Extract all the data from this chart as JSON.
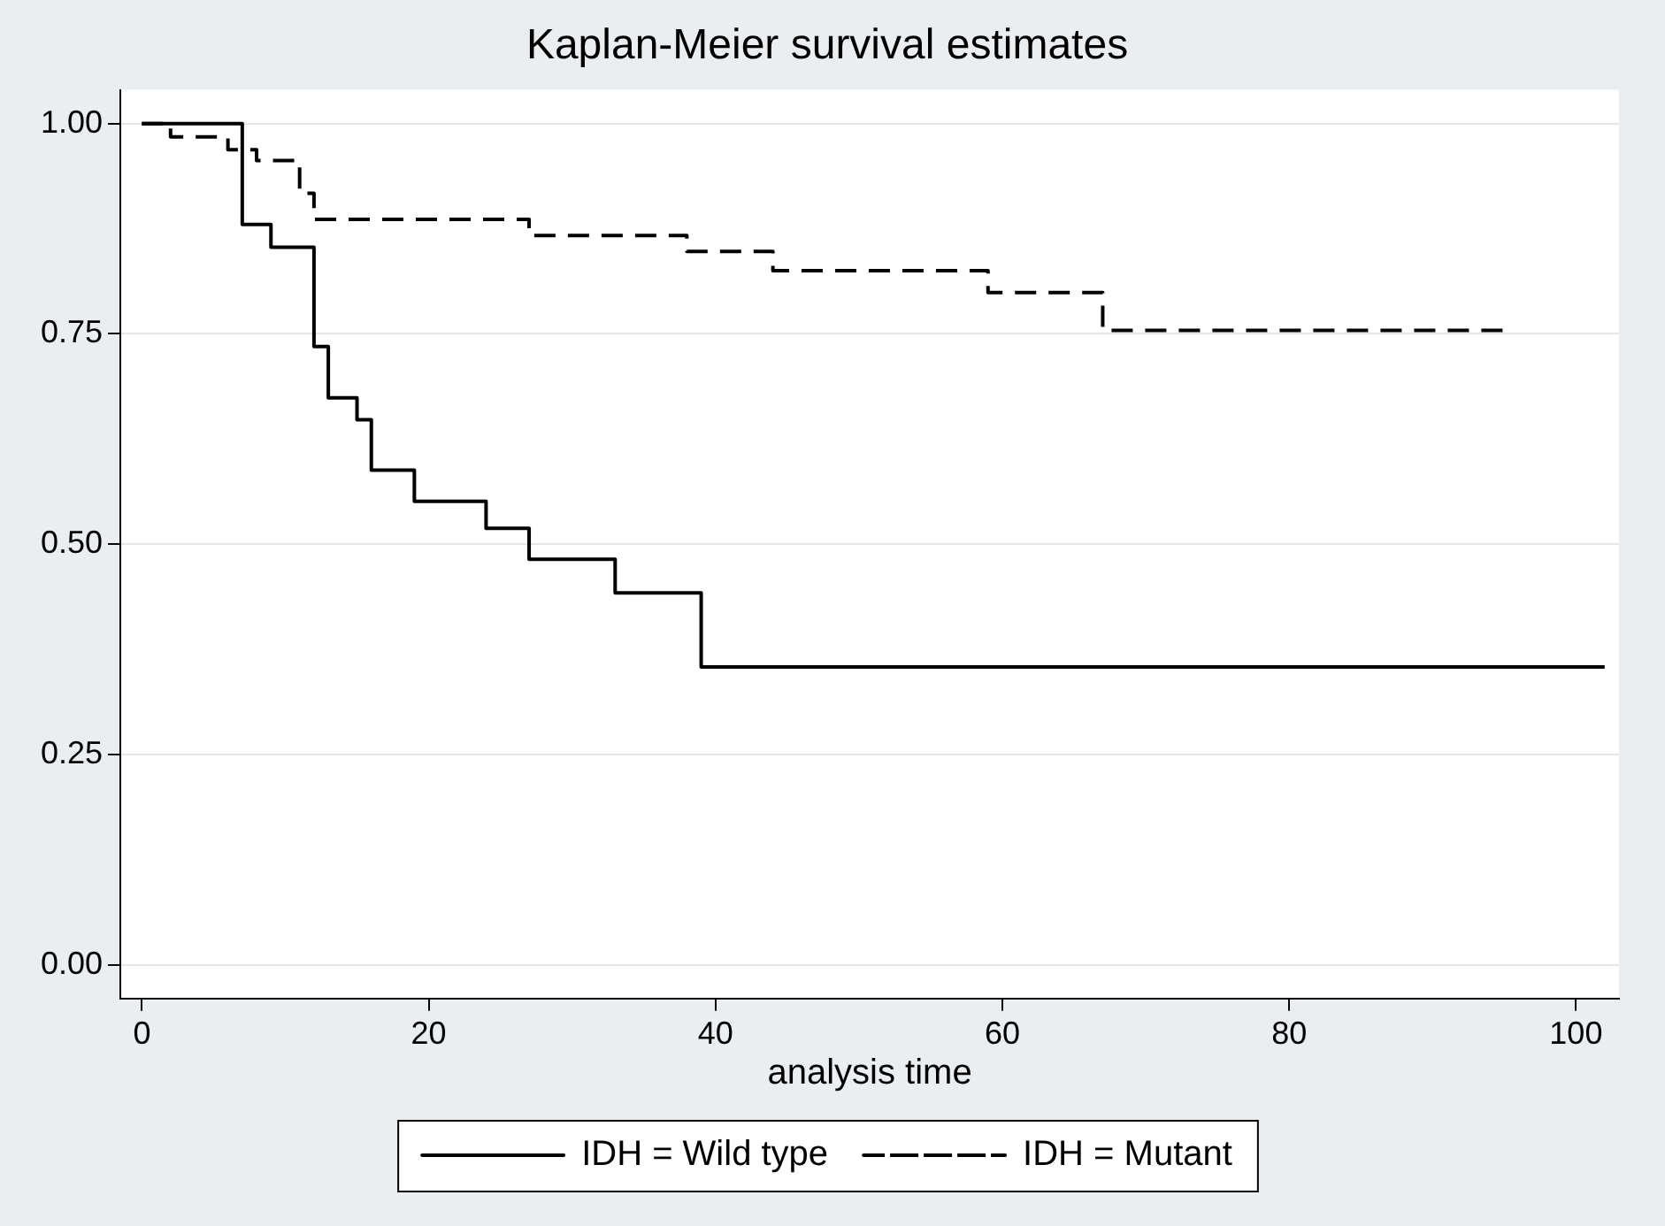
{
  "chart_data": {
    "type": "step",
    "title": "Kaplan-Meier survival estimates",
    "xlabel": "analysis time",
    "series": [
      {
        "name": "IDH = Wild type",
        "color": "#000000",
        "line_style": "solid",
        "x": [
          0,
          7,
          9,
          12,
          13,
          15,
          16,
          19,
          24,
          27,
          33,
          39,
          102
        ],
        "values": [
          1,
          0.88,
          0.853,
          0.735,
          0.674,
          0.648,
          0.588,
          0.551,
          0.519,
          0.482,
          0.442,
          0.354,
          0.354
        ]
      },
      {
        "name": "IDH = Mutant",
        "color": "#000000",
        "line_style": "dashed",
        "x": [
          0,
          2,
          6,
          8,
          11,
          12,
          27,
          38,
          44,
          59,
          67,
          95
        ],
        "values": [
          1,
          0.984,
          0.969,
          0.956,
          0.917,
          0.886,
          0.867,
          0.848,
          0.825,
          0.799,
          0.754,
          0.754
        ]
      }
    ],
    "xlim": [
      -1.5,
      103
    ],
    "xticks": [
      0,
      20,
      40,
      60,
      80,
      100
    ],
    "ylim": [
      -0.04,
      1.04
    ],
    "yticks": [
      {
        "value": 0,
        "label": "0.00"
      },
      {
        "value": 0.25,
        "label": "0.25"
      },
      {
        "value": 0.5,
        "label": "0.50"
      },
      {
        "value": 0.75,
        "label": "0.75"
      },
      {
        "value": 1,
        "label": "1.00"
      }
    ],
    "grid": "y",
    "legend": "bottom",
    "marker": "none"
  }
}
